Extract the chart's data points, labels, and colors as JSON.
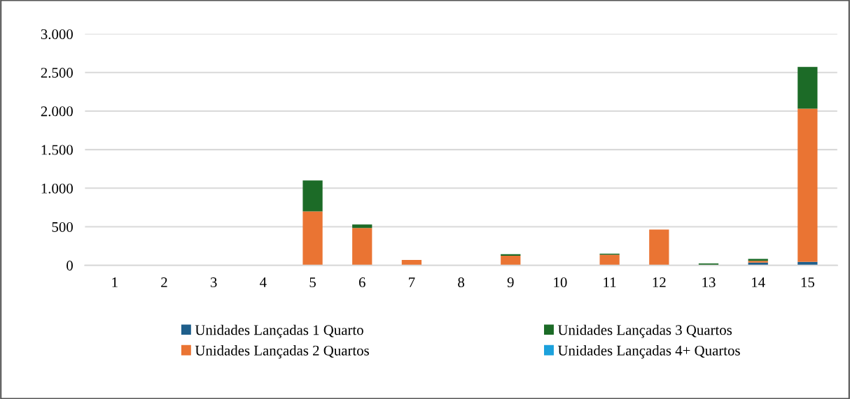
{
  "chart_data": {
    "type": "bar",
    "stacked": true,
    "categories": [
      "1",
      "2",
      "3",
      "4",
      "5",
      "6",
      "7",
      "8",
      "9",
      "10",
      "11",
      "12",
      "13",
      "14",
      "15"
    ],
    "series": [
      {
        "name": "Unidades Lançadas 1 Quarto",
        "color": "#1f5f8b",
        "values": [
          0,
          0,
          0,
          0,
          0,
          0,
          0,
          0,
          0,
          0,
          0,
          0,
          0,
          35,
          45
        ]
      },
      {
        "name": "Unidades Lançadas 2 Quartos",
        "color": "#ea7433",
        "values": [
          0,
          0,
          0,
          0,
          700,
          485,
          70,
          0,
          125,
          0,
          137,
          463,
          0,
          23,
          1985
        ]
      },
      {
        "name": "Unidades Lançadas 3 Quartos",
        "color": "#1c6b27",
        "values": [
          0,
          0,
          0,
          0,
          400,
          45,
          0,
          0,
          20,
          0,
          15,
          0,
          25,
          25,
          542
        ]
      },
      {
        "name": "Unidades Lançadas 4+ Quartos",
        "color": "#1ca1dc",
        "values": [
          0,
          0,
          0,
          0,
          0,
          0,
          0,
          0,
          0,
          0,
          0,
          0,
          0,
          0,
          0
        ]
      }
    ],
    "ylim": [
      0,
      3000
    ],
    "yticks": [
      {
        "value": 0,
        "label": "0"
      },
      {
        "value": 500,
        "label": "500"
      },
      {
        "value": 1000,
        "label": "1.000"
      },
      {
        "value": 1500,
        "label": "1.500"
      },
      {
        "value": 2000,
        "label": "2.000"
      },
      {
        "value": 2500,
        "label": "2.500"
      },
      {
        "value": 3000,
        "label": "3.000"
      }
    ],
    "grid": "y",
    "legend": "bottom"
  }
}
